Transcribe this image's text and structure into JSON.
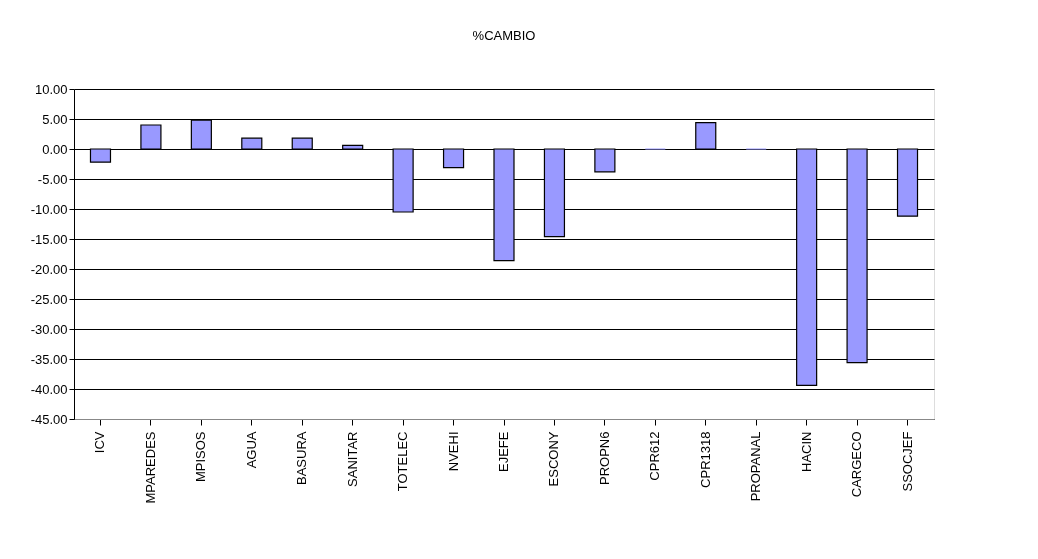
{
  "chart_data": {
    "type": "bar",
    "title": "%CAMBIO",
    "categories": [
      "ICV",
      "MPAREDES",
      "MPISOS",
      "AGUA",
      "BASURA",
      "SANITAR",
      "TOTELEC",
      "NVEHI",
      "EJEFE",
      "ESCONY",
      "PROPN6",
      "CPR612",
      "CPR1318",
      "PROPANAL",
      "HACIN",
      "CARGECO",
      "SSOCJEF"
    ],
    "values": [
      -2.2,
      4.0,
      4.8,
      1.8,
      1.8,
      0.6,
      -10.5,
      -3.1,
      -18.6,
      -14.6,
      -3.8,
      0,
      4.4,
      0,
      -39.4,
      -35.6,
      -11.2
    ],
    "color": "#9999ff",
    "ylim": [
      -45,
      10
    ],
    "yticks": [
      {
        "value": 10,
        "label": "10.00"
      },
      {
        "value": 5,
        "label": "5.00"
      },
      {
        "value": 0,
        "label": "0.00"
      },
      {
        "value": -5,
        "label": "-5.00"
      },
      {
        "value": -10,
        "label": "-10.00"
      },
      {
        "value": -15,
        "label": "-15.00"
      },
      {
        "value": -20,
        "label": "-20.00"
      },
      {
        "value": -25,
        "label": "-25.00"
      },
      {
        "value": -30,
        "label": "-30.00"
      },
      {
        "value": -35,
        "label": "-35.00"
      },
      {
        "value": -40,
        "label": "-40.00"
      },
      {
        "value": -45,
        "label": "-45.00"
      }
    ],
    "grid": "y"
  }
}
